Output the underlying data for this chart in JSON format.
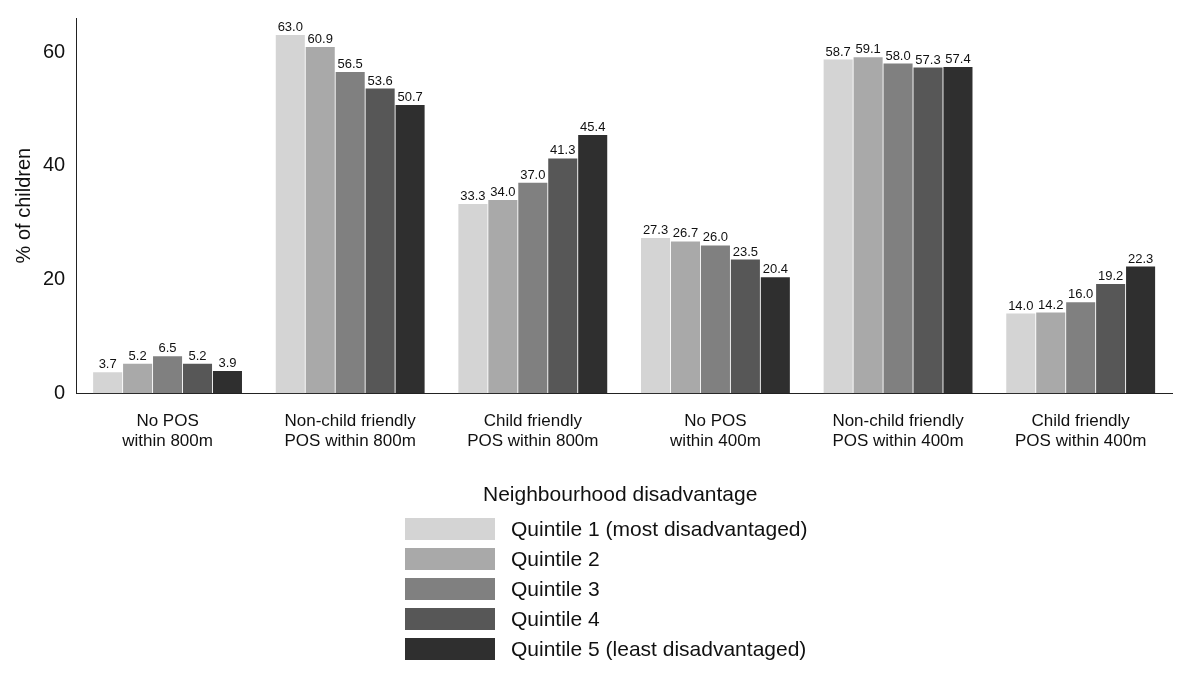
{
  "chart_data": {
    "type": "bar",
    "ylabel": "% of children",
    "legend_title": "Neighbourhood disadvantage",
    "categories": [
      "No POS\nwithin 800m",
      "Non-child friendly\nPOS within 800m",
      "Child friendly\nPOS within 800m",
      "No POS\nwithin 400m",
      "Non-child friendly\nPOS within 400m",
      "Child friendly\nPOS within 400m"
    ],
    "series": [
      {
        "name": "Quintile 1 (most disadvantaged)",
        "color": "#d4d4d4",
        "values": [
          3.7,
          63.0,
          33.3,
          27.3,
          58.7,
          14.0
        ],
        "value_labels": [
          "3.7",
          "63.0",
          "33.3",
          "27.3",
          "58.7",
          "14.0"
        ]
      },
      {
        "name": "Quintile 2",
        "color": "#a9a9a9",
        "values": [
          5.2,
          60.9,
          34.0,
          26.7,
          59.1,
          14.2
        ],
        "value_labels": [
          "5.2",
          "60.9",
          "34.0",
          "26.7",
          "59.1",
          "14.2"
        ]
      },
      {
        "name": "Quintile 3",
        "color": "#808080",
        "values": [
          6.5,
          56.5,
          37.0,
          26.0,
          58.0,
          16.0
        ],
        "value_labels": [
          "6.5",
          "56.5",
          "37.0",
          "26.0",
          "58.0",
          "16.0"
        ]
      },
      {
        "name": "Quintile 4",
        "color": "#575757",
        "values": [
          5.2,
          53.6,
          41.3,
          23.5,
          57.3,
          19.2
        ],
        "value_labels": [
          "5.2",
          "53.6",
          "41.3",
          "23.5",
          "57.3",
          "19.2"
        ]
      },
      {
        "name": "Quintile 5 (least disadvantaged)",
        "color": "#2f2f2f",
        "values": [
          3.9,
          50.7,
          45.4,
          20.4,
          57.4,
          22.3
        ],
        "value_labels": [
          "3.9",
          "50.7",
          "45.4",
          "20.4",
          "57.4",
          "22.3"
        ]
      }
    ],
    "ylim": [
      0,
      66
    ],
    "yticks": [
      0,
      20,
      40,
      60
    ],
    "grid": false,
    "legend": "bottom"
  }
}
